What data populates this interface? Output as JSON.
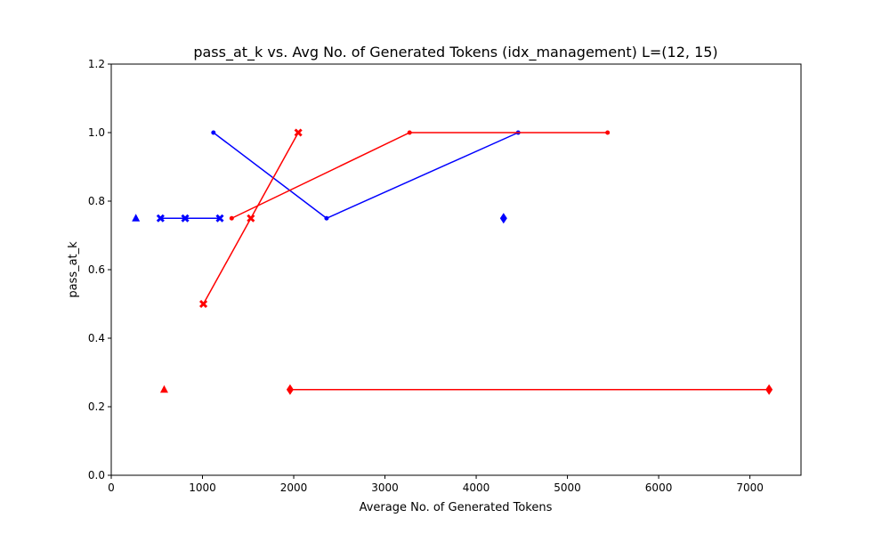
{
  "chart_data": {
    "type": "line",
    "title": "pass_at_k vs. Avg No. of Generated Tokens (idx_management) L=(12, 15)",
    "xlabel": "Average No. of Generated Tokens",
    "ylabel": "pass_at_k",
    "xlim": [
      0,
      7560
    ],
    "ylim": [
      0,
      1.2
    ],
    "xticks": [
      0,
      1000,
      2000,
      3000,
      4000,
      5000,
      6000,
      7000
    ],
    "yticks": [
      0.0,
      0.2,
      0.4,
      0.6,
      0.8,
      1.0,
      1.2
    ],
    "xtick_labels": [
      "0",
      "1000",
      "2000",
      "3000",
      "4000",
      "5000",
      "6000",
      "7000"
    ],
    "ytick_labels": [
      "0.0",
      "0.2",
      "0.4",
      "0.6",
      "0.8",
      "1.0",
      "1.2"
    ],
    "grid": false,
    "legend": "none",
    "series": [
      {
        "color": "#0000ff",
        "marker": "triangle",
        "x": [
          270
        ],
        "y": [
          0.75
        ]
      },
      {
        "color": "#0000ff",
        "marker": "x",
        "x": [
          540,
          810,
          1190
        ],
        "y": [
          0.75,
          0.75,
          0.75
        ]
      },
      {
        "color": "#0000ff",
        "marker": "dot",
        "x": [
          1120,
          2360,
          4460
        ],
        "y": [
          1.0,
          0.75,
          1.0
        ]
      },
      {
        "color": "#0000ff",
        "marker": "diamond",
        "x": [
          4300
        ],
        "y": [
          0.75
        ]
      },
      {
        "color": "#ff0000",
        "marker": "triangle",
        "x": [
          580
        ],
        "y": [
          0.25
        ]
      },
      {
        "color": "#ff0000",
        "marker": "x",
        "x": [
          1010,
          1530,
          2050
        ],
        "y": [
          0.5,
          0.75,
          1.0
        ]
      },
      {
        "color": "#ff0000",
        "marker": "dot",
        "x": [
          1320,
          3270,
          5440
        ],
        "y": [
          0.75,
          1.0,
          1.0
        ]
      },
      {
        "color": "#ff0000",
        "marker": "diamond",
        "x": [
          1960,
          7210
        ],
        "y": [
          0.25,
          0.25
        ]
      }
    ]
  }
}
